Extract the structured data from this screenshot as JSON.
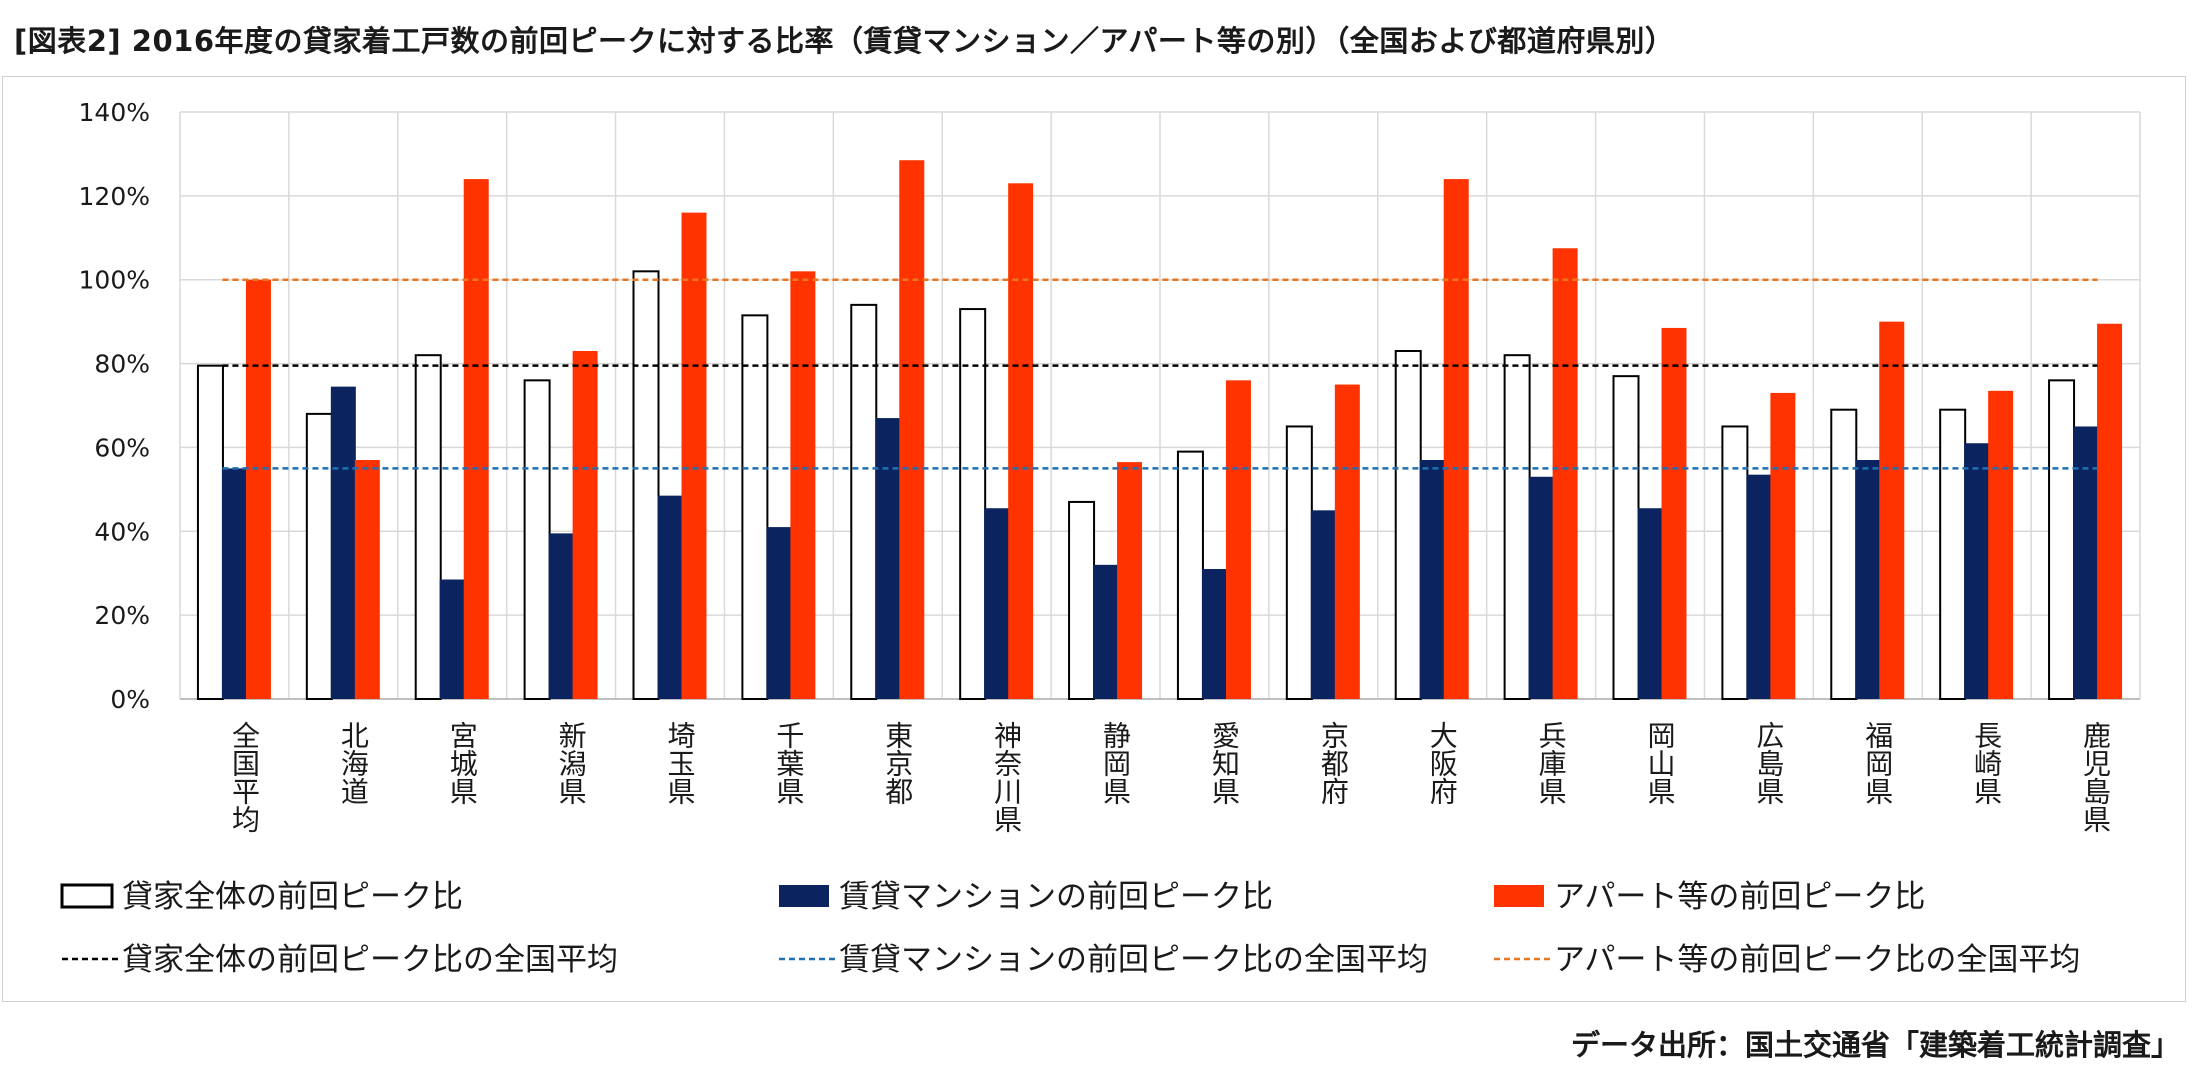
{
  "title": "[図表2] 2016年度の貸家着工戸数の前回ピークに対する比率（賃貸マンション／アパート等の別）（全国および都道府県別）",
  "source": "データ出所：国土交通省「建築着工統計調査」",
  "colors": {
    "total_fill": "#ffffff",
    "total_stroke": "#000000",
    "mansion": "#0b2460",
    "apartment": "#ff3300",
    "avg_total": "#000000",
    "avg_mansion": "#1f6fb2",
    "avg_apartment": "#e87722",
    "grid": "#d9d9d9"
  },
  "chart_data": {
    "type": "bar",
    "ylim": [
      0,
      140
    ],
    "yticks": [
      "0%",
      "20%",
      "40%",
      "60%",
      "80%",
      "100%",
      "120%",
      "140%"
    ],
    "grid": true,
    "legend_position": "bottom",
    "categories": [
      "全国平均",
      "北海道",
      "宮城県",
      "新潟県",
      "埼玉県",
      "千葉県",
      "東京都",
      "神奈川県",
      "静岡県",
      "愛知県",
      "京都府",
      "大阪府",
      "兵庫県",
      "岡山県",
      "広島県",
      "福岡県",
      "長崎県",
      "鹿児島県"
    ],
    "series": [
      {
        "name": "貸家全体の前回ピーク比",
        "values": [
          79.5,
          68,
          82,
          76,
          102,
          91.5,
          94,
          93,
          47,
          59,
          65,
          83,
          82,
          77,
          65,
          69,
          69,
          76
        ]
      },
      {
        "name": "賃貸マンションの前回ピーク比",
        "values": [
          55,
          74.5,
          28.5,
          39.5,
          48.5,
          41,
          67,
          45.5,
          32,
          31,
          45,
          57,
          53,
          45.5,
          53.5,
          57,
          61,
          65
        ]
      },
      {
        "name": "アパート等の前回ピーク比",
        "values": [
          100,
          57,
          124,
          83,
          116,
          102,
          128.5,
          123,
          56.5,
          76,
          75,
          124,
          107.5,
          88.5,
          73,
          90,
          73.5,
          89.5
        ]
      }
    ],
    "reference_lines": [
      {
        "name": "貸家全体の前回ピーク比の全国平均",
        "value": 79.5
      },
      {
        "name": "賃貸マンションの前回ピーク比の全国平均",
        "value": 55
      },
      {
        "name": "アパート等の前回ピーク比の全国平均",
        "value": 100
      }
    ]
  }
}
